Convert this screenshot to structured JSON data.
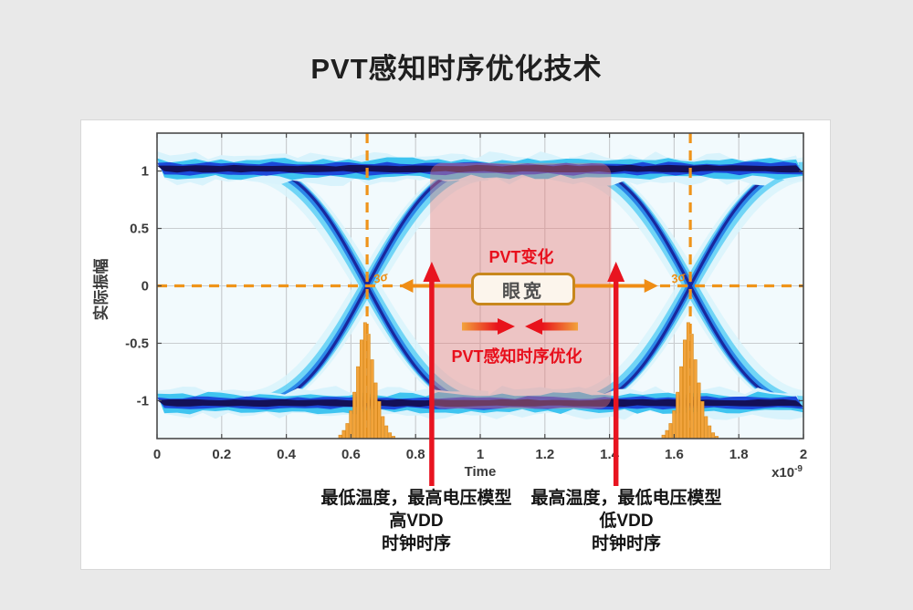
{
  "page": {
    "title": "PVT感知时序优化技术",
    "background": "#e9e9e9"
  },
  "chart_data": {
    "type": "heatmap",
    "subtype": "eye-diagram",
    "title": "",
    "xlabel": "Time",
    "x_unit_base": "x10",
    "x_unit_exp": "-9",
    "ylabel": "实际振幅",
    "xlim": [
      0,
      2
    ],
    "ylim": [
      -1.33,
      1.33
    ],
    "xticks": [
      0,
      0.2,
      0.4,
      0.6,
      0.8,
      1,
      1.2,
      1.4,
      1.6,
      1.8,
      2
    ],
    "xtick_labels": [
      "0",
      "0.2",
      "0.4",
      "0.6",
      "0.8",
      "1",
      "1.2",
      "1.4",
      "1.6",
      "1.8",
      "2"
    ],
    "yticks": [
      -1,
      -0.5,
      0,
      0.5,
      1
    ],
    "ytick_labels": [
      "-1",
      "-0.5",
      "0",
      "0.5",
      "1"
    ],
    "grid": true,
    "signal_levels": [
      1.02,
      -1.02
    ],
    "crossings_ns": [
      0.65,
      1.65
    ],
    "crossing_halfwidth_ns": 0.33,
    "eye_trace_layers": [
      {
        "w": 26,
        "color": "#d9f3fc",
        "spread": 16,
        "opacity": 0.85
      },
      {
        "w": 15,
        "color": "#55cdf4",
        "spread": 9,
        "opacity": 0.8
      },
      {
        "w": 8,
        "color": "#1e7ae6",
        "spread": 3,
        "opacity": 0.85
      },
      {
        "w": 3.2,
        "color": "#18239a",
        "spread": 0,
        "opacity": 0.95
      }
    ],
    "band_layers": [
      {
        "hh": 14,
        "color": "#d9f3fc",
        "amp": 10
      },
      {
        "hh": 9.5,
        "color": "#3fc4f0",
        "amp": 6
      },
      {
        "hh": 6,
        "color": "#1b49da",
        "amp": 3.5
      },
      {
        "hh": 3.4,
        "color": "#141057",
        "amp": 1.8
      }
    ],
    "jitter_histogram": {
      "centers_ns": [
        0.65,
        1.65
      ],
      "bar_width_ns": 0.011,
      "rel_heights": [
        0.03,
        0.07,
        0.13,
        0.24,
        0.4,
        0.62,
        0.85,
        1,
        0.9,
        0.68,
        0.48,
        0.32,
        0.19,
        0.11,
        0.05,
        0.02
      ],
      "peak_level": -0.32,
      "base_level": -1.33,
      "color": "#f2a43c",
      "edge_color": "#d8891b"
    },
    "markers": {
      "dashed_vlines_ns": [
        0.65,
        1.65
      ],
      "dashed_hline_level": 0,
      "sigma_label": "3σ",
      "eye_width_arrow": {
        "x1": 0.75,
        "x2": 1.55,
        "y": 0
      },
      "pvt_region": {
        "x1": 0.845,
        "x2": 1.405,
        "y1": -1.07,
        "y2": 1.07
      },
      "red_arrows_ns": [
        0.85,
        1.42
      ]
    },
    "colors": {
      "plot_bg": "#f2fafd",
      "grid": "#c9cdd0",
      "axis": "#4a4a4a",
      "tick_text": "#3a3a3a",
      "orange_dash": "#ef941a",
      "orange_arrow": "#ef8d15",
      "red": "#e81420",
      "region_fill": "rgba(231,122,117,0.42)",
      "gradient_start": "#f2a33c",
      "gradient_end": "#e8131c"
    }
  },
  "annotations": {
    "pvt_variation": "PVT变化",
    "eye_width": "眼宽",
    "pvt_optimization": "PVT感知时序优化",
    "left_model": {
      "line1": "最低温度，最高电压模型",
      "line2": "高VDD",
      "line3": "时钟时序"
    },
    "right_model": {
      "line1": "最高温度，最低电压模型",
      "line2": "低VDD",
      "line3": "时钟时序"
    }
  }
}
